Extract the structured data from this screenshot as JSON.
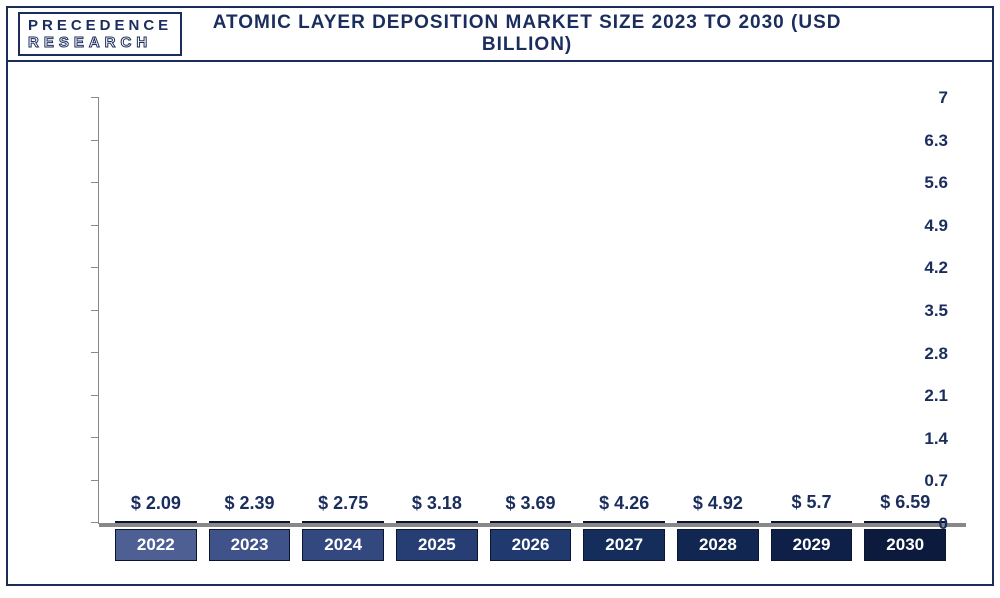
{
  "logo": {
    "line1": "PRECEDENCE",
    "line2": "RESEARCH"
  },
  "title": "ATOMIC LAYER DEPOSITION MARKET SIZE 2023 TO 2030 (USD BILLION)",
  "title_fontsize": 19,
  "chart": {
    "type": "bar",
    "ylim": [
      0,
      7
    ],
    "ytick_step": 0.7,
    "yticks": [
      0,
      0.7,
      1.4,
      2.1,
      2.8,
      3.5,
      4.2,
      4.9,
      5.6,
      6.3,
      7
    ],
    "categories": [
      "2022",
      "2023",
      "2024",
      "2025",
      "2026",
      "2027",
      "2028",
      "2029",
      "2030"
    ],
    "values": [
      2.09,
      2.39,
      2.75,
      3.18,
      3.69,
      4.26,
      4.92,
      5.7,
      6.59
    ],
    "value_labels": [
      "$ 2.09",
      "$ 2.39",
      "$ 2.75",
      "$ 3.18",
      "$ 3.69",
      "$ 4.26",
      "$ 4.92",
      "$ 5.7",
      "$ 6.59"
    ],
    "bar_colors": [
      "#4d5f93",
      "#3f5289",
      "#32487f",
      "#263e74",
      "#20396e",
      "#152d5b",
      "#112650",
      "#0e2048",
      "#0b1a3d"
    ],
    "xlabel_colors": [
      "#4d5f93",
      "#3f5289",
      "#32487f",
      "#263e74",
      "#20396e",
      "#152d5b",
      "#112650",
      "#0e2048",
      "#0b1a3d"
    ],
    "background_color": "#ffffff",
    "axis_color": "#888888",
    "text_color": "#1a2d5c",
    "data_label_fontsize": 18,
    "axis_label_fontsize": 17,
    "bar_width": 0.78
  }
}
